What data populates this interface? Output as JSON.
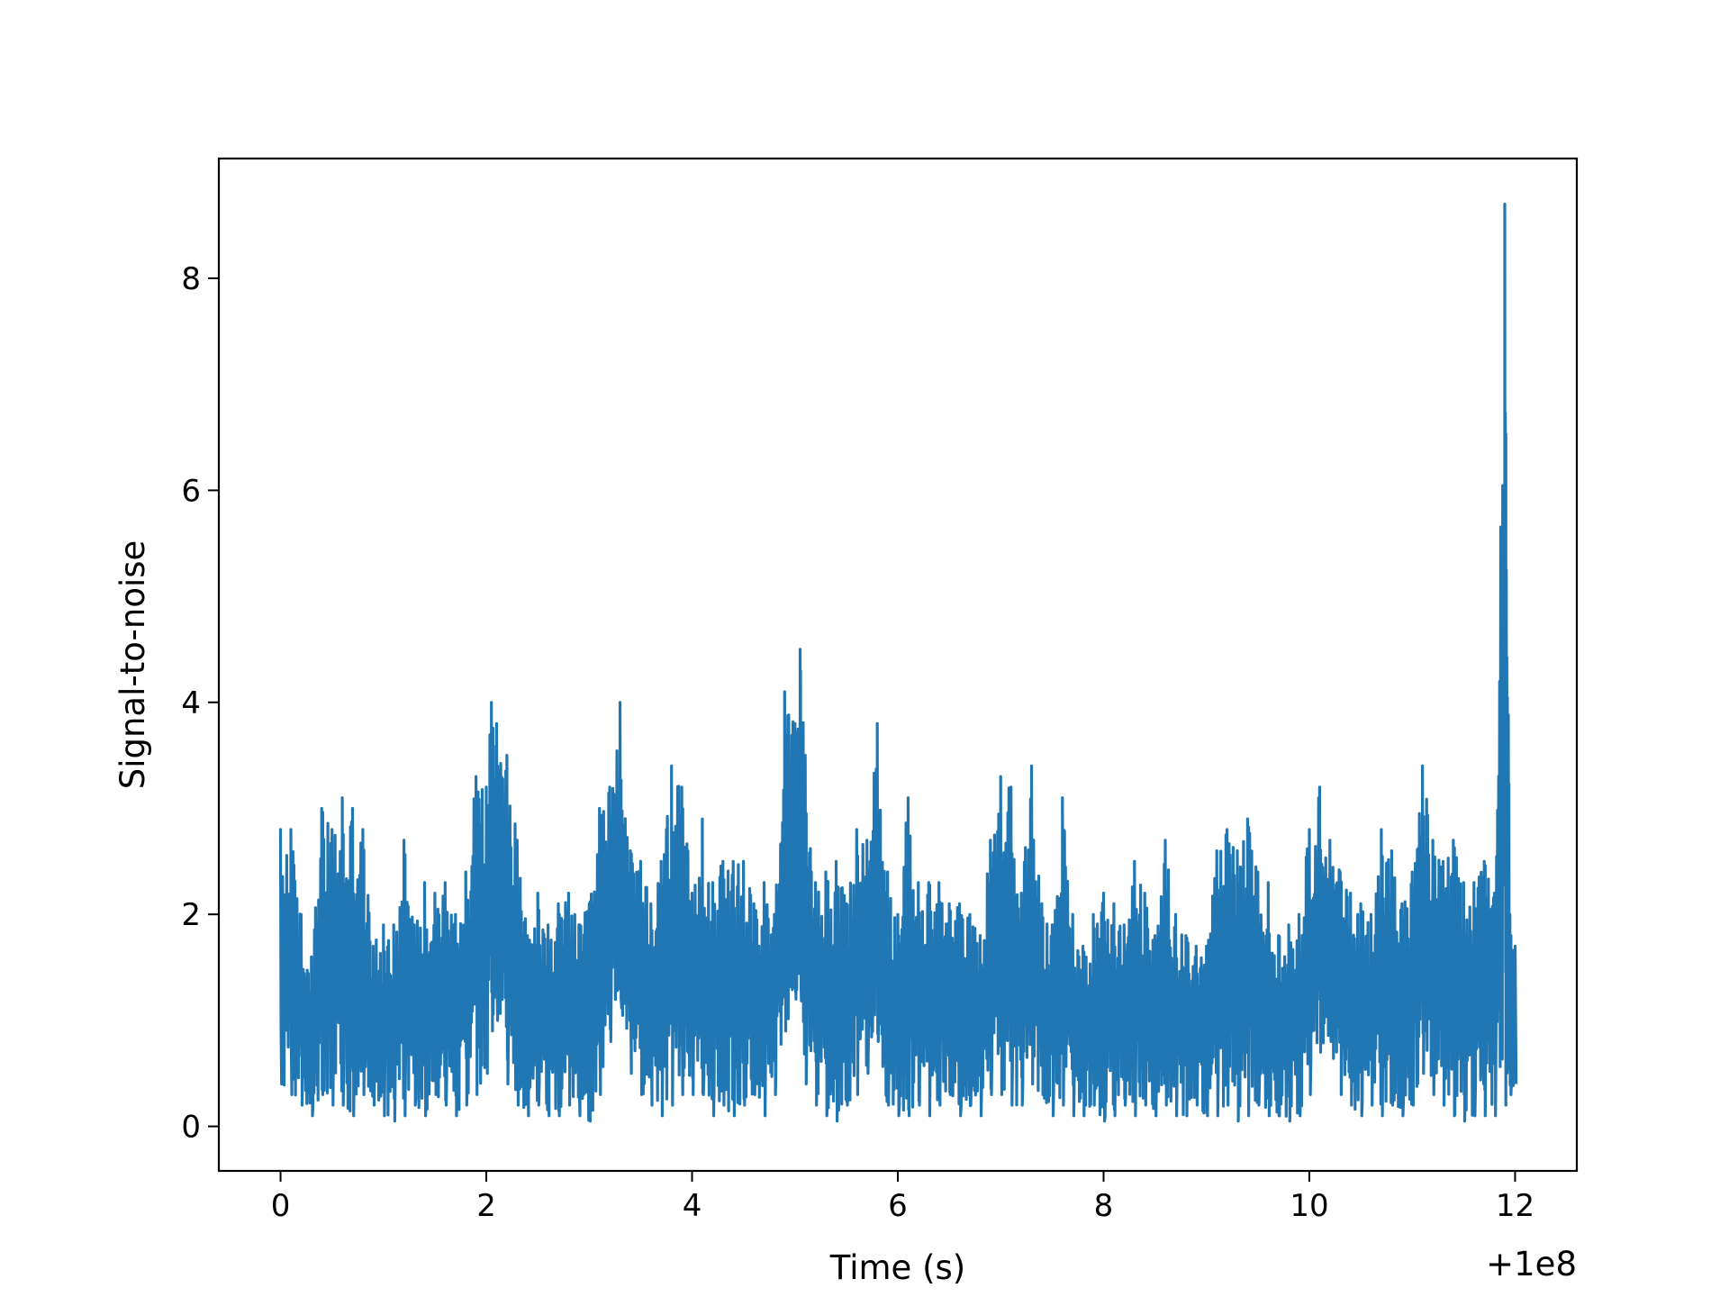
{
  "chart_data": {
    "type": "line",
    "title": "",
    "xlabel": "Time (s)",
    "ylabel": "Signal-to-noise",
    "x_offset_label": "+1e8",
    "xlim": [
      -0.6,
      12.6
    ],
    "ylim": [
      -0.42,
      9.13
    ],
    "xticks": [
      0,
      2,
      4,
      6,
      8,
      10,
      12
    ],
    "yticks": [
      0,
      2,
      4,
      6,
      8
    ],
    "xtick_labels": [
      "0",
      "2",
      "4",
      "6",
      "8",
      "10",
      "12"
    ],
    "ytick_labels": [
      "0",
      "2",
      "4",
      "6",
      "8"
    ],
    "grid": false,
    "legend": "none",
    "series": [
      {
        "color": "#2077b4",
        "x": [
          0.0,
          0.1,
          0.2,
          0.3,
          0.4,
          0.5,
          0.6,
          0.7,
          0.8,
          0.9,
          1.0,
          1.1,
          1.2,
          1.3,
          1.4,
          1.5,
          1.6,
          1.7,
          1.8,
          1.9,
          2.0,
          2.05,
          2.1,
          2.2,
          2.3,
          2.4,
          2.5,
          2.6,
          2.7,
          2.8,
          2.9,
          3.0,
          3.1,
          3.2,
          3.3,
          3.4,
          3.5,
          3.6,
          3.7,
          3.8,
          3.9,
          4.0,
          4.1,
          4.2,
          4.3,
          4.4,
          4.5,
          4.6,
          4.7,
          4.8,
          4.9,
          5.0,
          5.05,
          5.1,
          5.2,
          5.3,
          5.4,
          5.5,
          5.6,
          5.7,
          5.8,
          5.9,
          6.0,
          6.1,
          6.2,
          6.3,
          6.4,
          6.5,
          6.6,
          6.7,
          6.8,
          6.9,
          7.0,
          7.1,
          7.2,
          7.3,
          7.4,
          7.5,
          7.6,
          7.7,
          7.8,
          7.9,
          8.0,
          8.1,
          8.2,
          8.3,
          8.4,
          8.5,
          8.6,
          8.7,
          8.8,
          8.9,
          9.0,
          9.1,
          9.2,
          9.3,
          9.4,
          9.5,
          9.6,
          9.7,
          9.8,
          9.9,
          10.0,
          10.1,
          10.2,
          10.3,
          10.4,
          10.5,
          10.6,
          10.7,
          10.8,
          10.9,
          11.0,
          11.1,
          11.2,
          11.3,
          11.4,
          11.5,
          11.6,
          11.7,
          11.8,
          11.9,
          11.95,
          12.0
        ],
        "upper": [
          2.8,
          2.8,
          2.0,
          1.6,
          3.0,
          2.8,
          3.1,
          3.0,
          2.8,
          1.7,
          1.9,
          1.9,
          2.7,
          1.9,
          2.3,
          2.2,
          2.3,
          2.0,
          2.4,
          3.3,
          3.2,
          4.0,
          3.8,
          3.5,
          2.7,
          1.8,
          2.2,
          1.9,
          2.1,
          2.2,
          1.9,
          2.1,
          3.0,
          3.2,
          4.0,
          2.6,
          2.5,
          2.1,
          2.5,
          3.4,
          3.2,
          2.2,
          2.9,
          2.3,
          2.5,
          2.5,
          2.5,
          2.1,
          2.3,
          2.0,
          4.1,
          3.8,
          4.5,
          3.5,
          2.3,
          2.4,
          2.5,
          2.1,
          2.8,
          2.7,
          3.8,
          2.4,
          2.0,
          3.1,
          2.3,
          2.3,
          2.3,
          2.1,
          2.1,
          2.0,
          1.8,
          2.7,
          3.3,
          3.2,
          2.2,
          3.4,
          2.1,
          1.9,
          3.1,
          2.0,
          1.7,
          2.0,
          2.2,
          2.1,
          1.9,
          2.5,
          2.2,
          1.8,
          2.7,
          2.0,
          1.8,
          1.7,
          1.7,
          2.6,
          2.8,
          2.6,
          2.9,
          2.4,
          2.3,
          1.8,
          1.9,
          2.0,
          2.8,
          3.2,
          2.7,
          2.4,
          2.2,
          2.1,
          2.0,
          2.8,
          2.6,
          2.1,
          2.4,
          3.4,
          2.7,
          2.5,
          2.7,
          2.3,
          2.3,
          2.5,
          2.2,
          8.7,
          2.0,
          1.7
        ],
        "lower": [
          0.4,
          0.3,
          0.2,
          0.1,
          0.3,
          0.2,
          0.2,
          0.1,
          0.3,
          0.2,
          0.1,
          0.05,
          0.1,
          0.2,
          0.1,
          0.3,
          0.2,
          0.1,
          0.2,
          0.3,
          0.5,
          0.9,
          1.0,
          0.4,
          0.2,
          0.1,
          0.2,
          0.1,
          0.1,
          0.2,
          0.1,
          0.05,
          0.3,
          0.8,
          1.2,
          0.5,
          0.3,
          0.2,
          0.1,
          0.2,
          0.3,
          0.3,
          0.3,
          0.1,
          0.2,
          0.1,
          0.2,
          0.3,
          0.1,
          0.3,
          0.9,
          1.2,
          1.3,
          0.4,
          0.2,
          0.1,
          0.05,
          0.2,
          0.3,
          0.5,
          0.8,
          0.2,
          0.1,
          0.1,
          0.2,
          0.1,
          0.2,
          0.3,
          0.1,
          0.2,
          0.1,
          0.3,
          0.3,
          0.2,
          0.2,
          0.4,
          0.3,
          0.1,
          0.2,
          0.1,
          0.1,
          0.2,
          0.05,
          0.1,
          0.2,
          0.1,
          0.2,
          0.1,
          0.2,
          0.1,
          0.1,
          0.2,
          0.1,
          0.1,
          0.2,
          0.05,
          0.1,
          0.2,
          0.1,
          0.1,
          0.05,
          0.1,
          0.3,
          0.7,
          0.8,
          0.3,
          0.2,
          0.1,
          0.2,
          0.1,
          0.2,
          0.1,
          0.2,
          0.5,
          0.3,
          0.2,
          0.1,
          0.05,
          0.1,
          0.1,
          0.1,
          0.2,
          0.3,
          0.4
        ]
      }
    ]
  }
}
